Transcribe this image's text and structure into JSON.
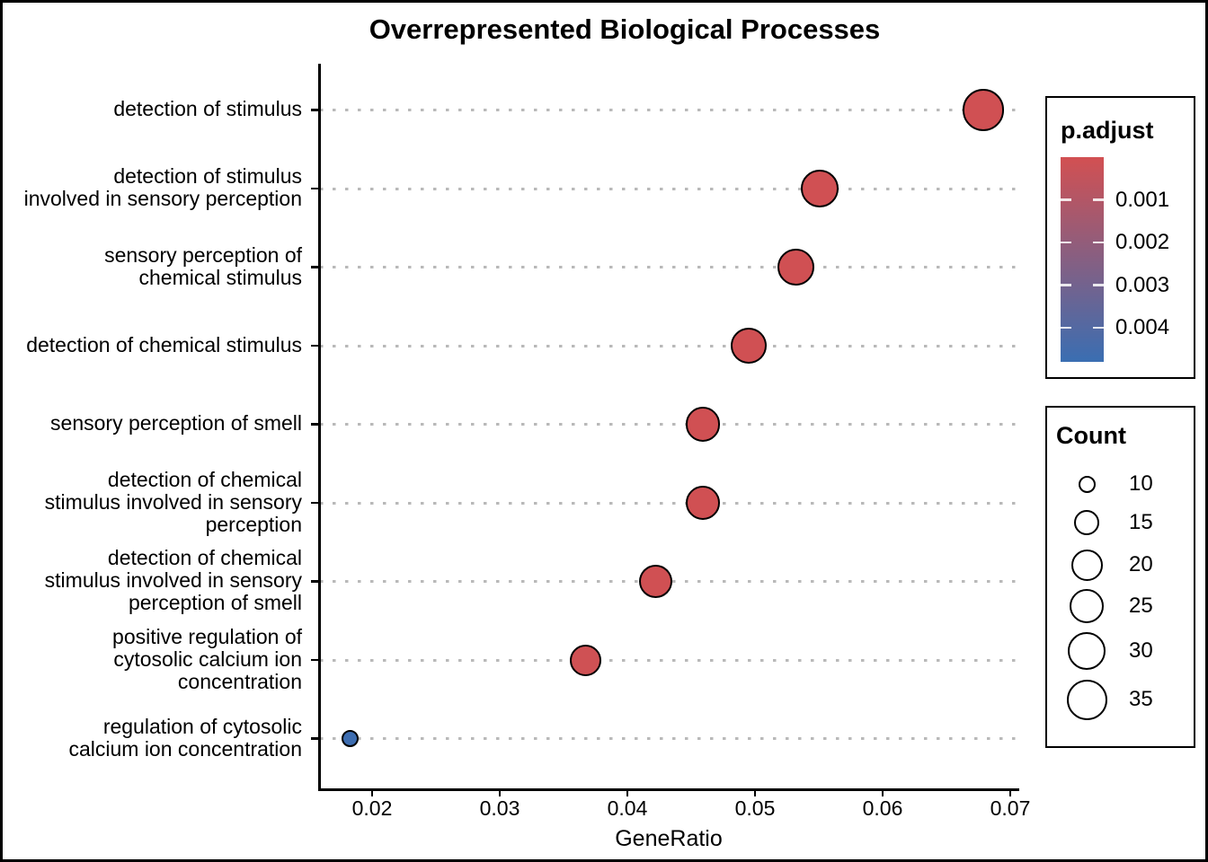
{
  "figure": {
    "background_color": "#FFFFFF",
    "border_color": "#000000"
  },
  "chart_data": {
    "type": "scatter",
    "title": "Overrepresented Biological Processes",
    "xlabel": "GeneRatio",
    "ylabel": "",
    "x_ticks": [
      "0.02",
      "0.03",
      "0.04",
      "0.05",
      "0.06",
      "0.07"
    ],
    "x_tick_values": [
      0.02,
      0.03,
      0.04,
      0.05,
      0.06,
      0.07
    ],
    "xlim": [
      0.0159,
      0.0706
    ],
    "grid": "horizontal dotted gray lines, one per category",
    "grid_color": "#B9B9B9",
    "points": [
      {
        "label": "detection of stimulus",
        "label_lines": [
          "detection of stimulus"
        ],
        "gene_ratio": 0.0679,
        "count": 37,
        "p_adjust": 5e-05
      },
      {
        "label": "detection of stimulus involved in sensory perception",
        "label_lines": [
          "detection of stimulus",
          "involved in sensory perception"
        ],
        "gene_ratio": 0.0551,
        "count": 30,
        "p_adjust": 5e-05
      },
      {
        "label": "sensory perception of chemical stimulus",
        "label_lines": [
          "sensory perception of",
          "chemical stimulus"
        ],
        "gene_ratio": 0.0532,
        "count": 29,
        "p_adjust": 5e-05
      },
      {
        "label": "detection of chemical stimulus",
        "label_lines": [
          "detection of chemical stimulus"
        ],
        "gene_ratio": 0.0495,
        "count": 27,
        "p_adjust": 5e-05
      },
      {
        "label": "sensory perception of smell",
        "label_lines": [
          "sensory perception of smell"
        ],
        "gene_ratio": 0.0459,
        "count": 25,
        "p_adjust": 5e-05
      },
      {
        "label": "detection of chemical stimulus involved in sensory perception",
        "label_lines": [
          "detection of chemical",
          "stimulus involved in sensory",
          "perception"
        ],
        "gene_ratio": 0.0459,
        "count": 25,
        "p_adjust": 5e-05
      },
      {
        "label": "detection of chemical stimulus involved in sensory perception of smell",
        "label_lines": [
          "detection of chemical",
          "stimulus involved in sensory",
          "perception of smell"
        ],
        "gene_ratio": 0.0422,
        "count": 23,
        "p_adjust": 5e-05
      },
      {
        "label": "positive regulation of cytosolic calcium ion concentration",
        "label_lines": [
          "positive regulation of",
          "cytosolic calcium ion",
          "concentration"
        ],
        "gene_ratio": 0.0367,
        "count": 20,
        "p_adjust": 0.0001
      },
      {
        "label": "regulation of cytosolic calcium ion concentration",
        "label_lines": [
          "regulation of cytosolic",
          "calcium ion concentration"
        ],
        "gene_ratio": 0.0183,
        "count": 10,
        "p_adjust": 0.0047
      }
    ],
    "color_legend": {
      "title": "p.adjust",
      "tick_labels": [
        "0.001",
        "0.002",
        "0.003",
        "0.004"
      ],
      "tick_values": [
        0.001,
        0.002,
        0.003,
        0.004
      ],
      "domain": [
        0,
        0.0048
      ],
      "low_color": "#D25052",
      "high_color": "#3A6EB2",
      "orientation": "vertical, red (low p) on top, blue (high p) on bottom"
    },
    "size_legend": {
      "title": "Count",
      "values": [
        10,
        15,
        20,
        25,
        30,
        35
      ]
    },
    "legend_position": "right"
  }
}
